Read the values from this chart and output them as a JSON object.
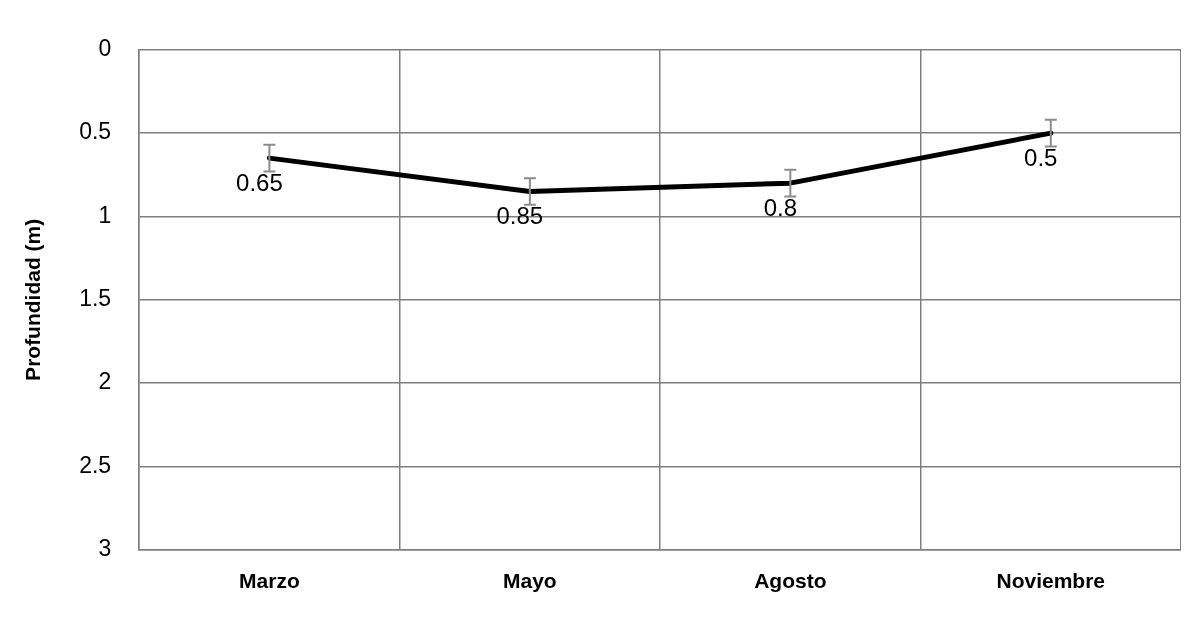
{
  "chart_data": {
    "type": "line",
    "ylabel": "Profundidad (m)",
    "categories": [
      "Marzo",
      "Mayo",
      "Agosto",
      "Noviembre"
    ],
    "series": [
      {
        "color": "#000000",
        "values": [
          0.65,
          0.85,
          0.8,
          0.5
        ],
        "errors": [
          0.08,
          0.08,
          0.08,
          0.08
        ]
      }
    ],
    "ylim": [
      3,
      0
    ],
    "yticks": [
      0,
      0.5,
      1,
      1.5,
      2,
      2.5,
      3
    ],
    "grid": true,
    "legend": false,
    "marker": "none",
    "line_style": "solid",
    "data_labels": true
  }
}
